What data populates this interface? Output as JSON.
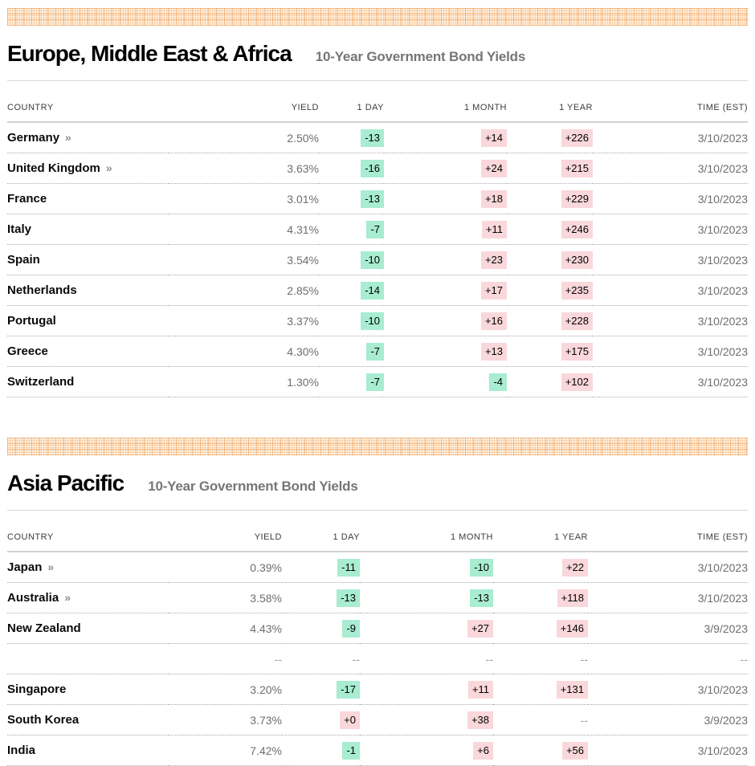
{
  "page": {
    "background": "#ffffff"
  },
  "colors": {
    "change_down_bg": "#a8ecd1",
    "change_up_bg": "#f9d7db",
    "banner_orange": "#f29949",
    "country_text": "#0a0a0a",
    "value_text": "#6e6e6e"
  },
  "link_chevron": "»",
  "sections": [
    {
      "id": "emea",
      "title": "Europe, Middle East & Africa",
      "subtitle": "10-Year Government Bond Yields",
      "columns": [
        "COUNTRY",
        "YIELD",
        "1 DAY",
        "1 MONTH",
        "1 YEAR",
        "TIME (EST)"
      ],
      "rows": [
        {
          "country": "Germany",
          "linked": true,
          "yield": "2.50%",
          "day1": "-13",
          "month1": "+14",
          "year1": "+226",
          "time": "3/10/2023"
        },
        {
          "country": "United Kingdom",
          "linked": true,
          "yield": "3.63%",
          "day1": "-16",
          "month1": "+24",
          "year1": "+215",
          "time": "3/10/2023"
        },
        {
          "country": "France",
          "linked": false,
          "yield": "3.01%",
          "day1": "-13",
          "month1": "+18",
          "year1": "+229",
          "time": "3/10/2023"
        },
        {
          "country": "Italy",
          "linked": false,
          "yield": "4.31%",
          "day1": "-7",
          "month1": "+11",
          "year1": "+246",
          "time": "3/10/2023"
        },
        {
          "country": "Spain",
          "linked": false,
          "yield": "3.54%",
          "day1": "-10",
          "month1": "+23",
          "year1": "+230",
          "time": "3/10/2023"
        },
        {
          "country": "Netherlands",
          "linked": false,
          "yield": "2.85%",
          "day1": "-14",
          "month1": "+17",
          "year1": "+235",
          "time": "3/10/2023"
        },
        {
          "country": "Portugal",
          "linked": false,
          "yield": "3.37%",
          "day1": "-10",
          "month1": "+16",
          "year1": "+228",
          "time": "3/10/2023"
        },
        {
          "country": "Greece",
          "linked": false,
          "yield": "4.30%",
          "day1": "-7",
          "month1": "+13",
          "year1": "+175",
          "time": "3/10/2023"
        },
        {
          "country": "Switzerland",
          "linked": false,
          "yield": "1.30%",
          "day1": "-7",
          "month1": "-4",
          "year1": "+102",
          "time": "3/10/2023"
        }
      ]
    },
    {
      "id": "apac",
      "title": "Asia Pacific",
      "subtitle": "10-Year Government Bond Yields",
      "columns": [
        "COUNTRY",
        "YIELD",
        "1 DAY",
        "1 MONTH",
        "1 YEAR",
        "TIME (EST)"
      ],
      "rows": [
        {
          "country": "Japan",
          "linked": true,
          "yield": "0.39%",
          "day1": "-11",
          "month1": "-10",
          "year1": "+22",
          "time": "3/10/2023"
        },
        {
          "country": "Australia",
          "linked": true,
          "yield": "3.58%",
          "day1": "-13",
          "month1": "-13",
          "year1": "+118",
          "time": "3/10/2023"
        },
        {
          "country": "New Zealand",
          "linked": false,
          "yield": "4.43%",
          "day1": "-9",
          "month1": "+27",
          "year1": "+146",
          "time": "3/9/2023"
        },
        {
          "country": "",
          "linked": false,
          "yield": "--",
          "day1": "--",
          "month1": "--",
          "year1": "--",
          "time": "--"
        },
        {
          "country": "Singapore",
          "linked": false,
          "yield": "3.20%",
          "day1": "-17",
          "month1": "+11",
          "year1": "+131",
          "time": "3/10/2023"
        },
        {
          "country": "South Korea",
          "linked": false,
          "yield": "3.73%",
          "day1": "+0",
          "month1": "+38",
          "year1": "--",
          "time": "3/9/2023"
        },
        {
          "country": "India",
          "linked": false,
          "yield": "7.42%",
          "day1": "-1",
          "month1": "+6",
          "year1": "+56",
          "time": "3/10/2023"
        }
      ]
    }
  ]
}
